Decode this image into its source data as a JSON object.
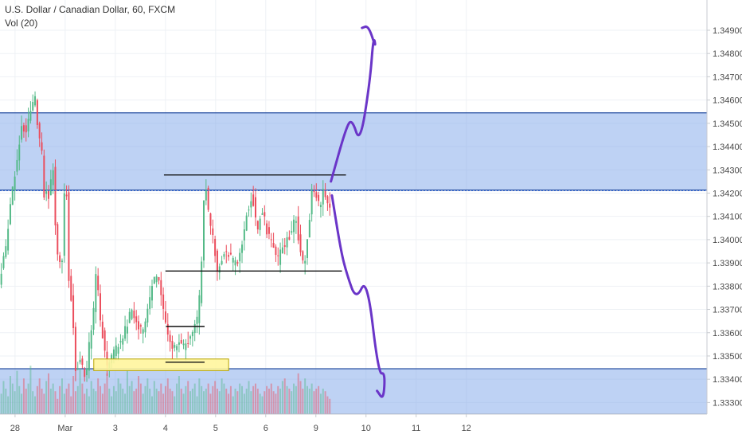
{
  "header": {
    "symbol_line": "U.S. Dollar / Canadian Dollar, 60, FXCM",
    "indicator_line": "Vol (20)"
  },
  "colors": {
    "up": "#53b987",
    "down": "#eb4d5c",
    "zone_fill": "#7ea6ea",
    "zone_border": "#2f55a4",
    "highlight_fill": "#fff59d",
    "highlight_border": "#b8a400",
    "drawing": "#6a35c8",
    "grid": "#eef1f5",
    "axis_text": "#4a4a4a"
  },
  "chart_data": {
    "type": "candlestick",
    "title": "U.S. Dollar / Canadian Dollar, 60, FXCM",
    "ylim": [
      1.3325,
      1.3503
    ],
    "x_range_days": [
      -1.3,
      12.8
    ],
    "grid": true,
    "y_ticks": [
      "1.34900",
      "1.34800",
      "1.34700",
      "1.34600",
      "1.34500",
      "1.34400",
      "1.34300",
      "1.34200",
      "1.34100",
      "1.34000",
      "1.33900",
      "1.33800",
      "1.33700",
      "1.33600",
      "1.33500",
      "1.33400",
      "1.33300"
    ],
    "x_ticks": [
      {
        "label": "28",
        "day": -1
      },
      {
        "label": "Mar",
        "day": 0
      },
      {
        "label": "3",
        "day": 1
      },
      {
        "label": "4",
        "day": 2
      },
      {
        "label": "5",
        "day": 3
      },
      {
        "label": "6",
        "day": 4
      },
      {
        "label": "9",
        "day": 5
      },
      {
        "label": "10",
        "day": 6
      },
      {
        "label": "11",
        "day": 7
      },
      {
        "label": "12",
        "day": 8
      }
    ],
    "price_path": [
      [
        -1.7,
        1.3336
      ],
      [
        -1.55,
        1.3345
      ],
      [
        -1.4,
        1.3365
      ],
      [
        -1.3,
        1.338
      ],
      [
        -1.15,
        1.3398
      ],
      [
        -1.05,
        1.3418
      ],
      [
        -0.95,
        1.3432
      ],
      [
        -0.85,
        1.345
      ],
      [
        -0.75,
        1.3446
      ],
      [
        -0.65,
        1.3458
      ],
      [
        -0.58,
        1.3461
      ],
      [
        -0.52,
        1.3447
      ],
      [
        -0.45,
        1.344
      ],
      [
        -0.4,
        1.342
      ],
      [
        -0.3,
        1.3418
      ],
      [
        -0.22,
        1.3432
      ],
      [
        -0.15,
        1.3395
      ],
      [
        -0.05,
        1.3385
      ],
      [
        0.03,
        1.3435
      ],
      [
        0.1,
        1.338
      ],
      [
        0.17,
        1.337
      ],
      [
        0.22,
        1.3345
      ],
      [
        0.33,
        1.3348
      ],
      [
        0.43,
        1.334
      ],
      [
        0.5,
        1.3355
      ],
      [
        0.58,
        1.3368
      ],
      [
        0.65,
        1.3388
      ],
      [
        0.7,
        1.3368
      ],
      [
        0.78,
        1.3358
      ],
      [
        0.85,
        1.3345
      ],
      [
        0.95,
        1.335
      ],
      [
        1.05,
        1.3353
      ],
      [
        1.15,
        1.3358
      ],
      [
        1.25,
        1.3363
      ],
      [
        1.35,
        1.337
      ],
      [
        1.45,
        1.3365
      ],
      [
        1.55,
        1.336
      ],
      [
        1.65,
        1.3368
      ],
      [
        1.75,
        1.338
      ],
      [
        1.85,
        1.3386
      ],
      [
        1.95,
        1.3375
      ],
      [
        2.02,
        1.3365
      ],
      [
        2.1,
        1.3358
      ],
      [
        2.18,
        1.3352
      ],
      [
        2.27,
        1.3356
      ],
      [
        2.35,
        1.3353
      ],
      [
        2.45,
        1.3356
      ],
      [
        2.55,
        1.3358
      ],
      [
        2.65,
        1.3365
      ],
      [
        2.7,
        1.3375
      ],
      [
        2.75,
        1.3394
      ],
      [
        2.8,
        1.3426
      ],
      [
        2.9,
        1.3409
      ],
      [
        3.0,
        1.3396
      ],
      [
        3.05,
        1.3386
      ],
      [
        3.15,
        1.3392
      ],
      [
        3.25,
        1.3395
      ],
      [
        3.35,
        1.3391
      ],
      [
        3.45,
        1.339
      ],
      [
        3.55,
        1.3398
      ],
      [
        3.65,
        1.3412
      ],
      [
        3.75,
        1.342
      ],
      [
        3.85,
        1.3405
      ],
      [
        3.95,
        1.3413
      ],
      [
        4.05,
        1.3403
      ],
      [
        4.15,
        1.3398
      ],
      [
        4.25,
        1.339
      ],
      [
        4.35,
        1.3396
      ],
      [
        4.5,
        1.3402
      ],
      [
        4.62,
        1.341
      ],
      [
        4.72,
        1.3393
      ],
      [
        4.8,
        1.339
      ],
      [
        4.88,
        1.3405
      ],
      [
        4.95,
        1.3423
      ],
      [
        5.02,
        1.3418
      ],
      [
        5.1,
        1.3415
      ],
      [
        5.18,
        1.3422
      ],
      [
        5.25,
        1.3414
      ],
      [
        5.3,
        1.3413
      ]
    ],
    "highlighted_price": 1.3421,
    "series": [
      {
        "name": "Vol (20)",
        "type": "histogram",
        "values": [
          0.35,
          0.6,
          0.45,
          0.8,
          0.5,
          0.3,
          0.55,
          0.9,
          0.7,
          0.4,
          0.65,
          0.5,
          0.35,
          0.75,
          0.6,
          0.45,
          0.85,
          0.55,
          0.4,
          0.7,
          0.5,
          0.6,
          0.95,
          0.45,
          0.35,
          0.55,
          0.7,
          0.5,
          0.4,
          0.65,
          0.8,
          0.5,
          0.6,
          0.45,
          0.3,
          0.55,
          0.7,
          0.4,
          0.5,
          0.6,
          0.35,
          0.75,
          0.45,
          0.55,
          0.9,
          0.6,
          0.4,
          0.5,
          0.35,
          0.65,
          0.5,
          0.45,
          0.7,
          0.55,
          0.4,
          0.6,
          0.8,
          0.5,
          0.35,
          0.55,
          0.45,
          0.7,
          0.6,
          0.5,
          0.4,
          0.85,
          0.55,
          0.65,
          0.45,
          0.5,
          0.75,
          0.6,
          0.4,
          0.55,
          0.7,
          0.5,
          0.35,
          0.65,
          0.5,
          0.45,
          0.6,
          0.4,
          0.55,
          0.7,
          0.5,
          0.45,
          0.35,
          0.6,
          0.75,
          0.5,
          0.4,
          0.55,
          0.65,
          0.45,
          0.5,
          0.6,
          0.35,
          0.7,
          0.55,
          0.45,
          0.5,
          0.6,
          0.4,
          0.55,
          0.65,
          0.5,
          0.45,
          0.7,
          0.6,
          0.5,
          0.4,
          0.55,
          0.35,
          0.5,
          0.45,
          0.6,
          0.55,
          0.4,
          0.5,
          0.65,
          0.45,
          0.55,
          0.6,
          0.5,
          0.4,
          0.35,
          0.45,
          0.55,
          0.5,
          0.6,
          0.45,
          0.4,
          0.55,
          0.5,
          0.65,
          0.7,
          0.55,
          0.5,
          0.45,
          0.6,
          0.55,
          0.8,
          0.65,
          0.5,
          0.7,
          0.55,
          0.5,
          0.6,
          0.45,
          0.5,
          0.55,
          0.4,
          0.5,
          0.45,
          0.35,
          0.3
        ]
      }
    ],
    "annotations": {
      "zones": [
        {
          "name": "supply-zone",
          "y_from": 1.34213,
          "y_to": 1.34545
        },
        {
          "name": "demand-zone",
          "y_from": 1.3325,
          "y_to": 1.33445
        }
      ],
      "highlight_box": {
        "day_from": 0.57,
        "day_to": 3.26,
        "y_from": 1.33487,
        "y_to": 1.33437
      },
      "levels": [
        {
          "name": "range-top-line",
          "day_from": 1.97,
          "day_to": 5.6,
          "price": 1.34278
        },
        {
          "name": "range-bottom-line",
          "day_from": 2.0,
          "day_to": 5.52,
          "price": 1.33865
        },
        {
          "name": "small-top-line",
          "day_from": 2.01,
          "day_to": 2.78,
          "price": 1.33627
        },
        {
          "name": "small-bottom-line",
          "day_from": 2.0,
          "day_to": 2.78,
          "price": 1.33473
        }
      ],
      "drawings": [
        {
          "name": "projection-up-path",
          "points": [
            [
              5.3,
              1.3425
            ],
            [
              5.6,
              1.3448
            ],
            [
              5.72,
              1.3452
            ],
            [
              5.88,
              1.3441
            ],
            [
              6.08,
              1.3468
            ],
            [
              6.15,
              1.3488
            ],
            [
              6.2,
              1.3482
            ],
            [
              6.05,
              1.3492
            ],
            [
              5.92,
              1.3491
            ]
          ]
        },
        {
          "name": "projection-down-path",
          "points": [
            [
              5.32,
              1.3419
            ],
            [
              5.5,
              1.3395
            ],
            [
              5.62,
              1.3385
            ],
            [
              5.8,
              1.3374
            ],
            [
              6.02,
              1.3384
            ],
            [
              6.25,
              1.3342
            ],
            [
              6.38,
              1.3343
            ],
            [
              6.35,
              1.3331
            ],
            [
              6.22,
              1.3335
            ]
          ]
        }
      ]
    }
  }
}
